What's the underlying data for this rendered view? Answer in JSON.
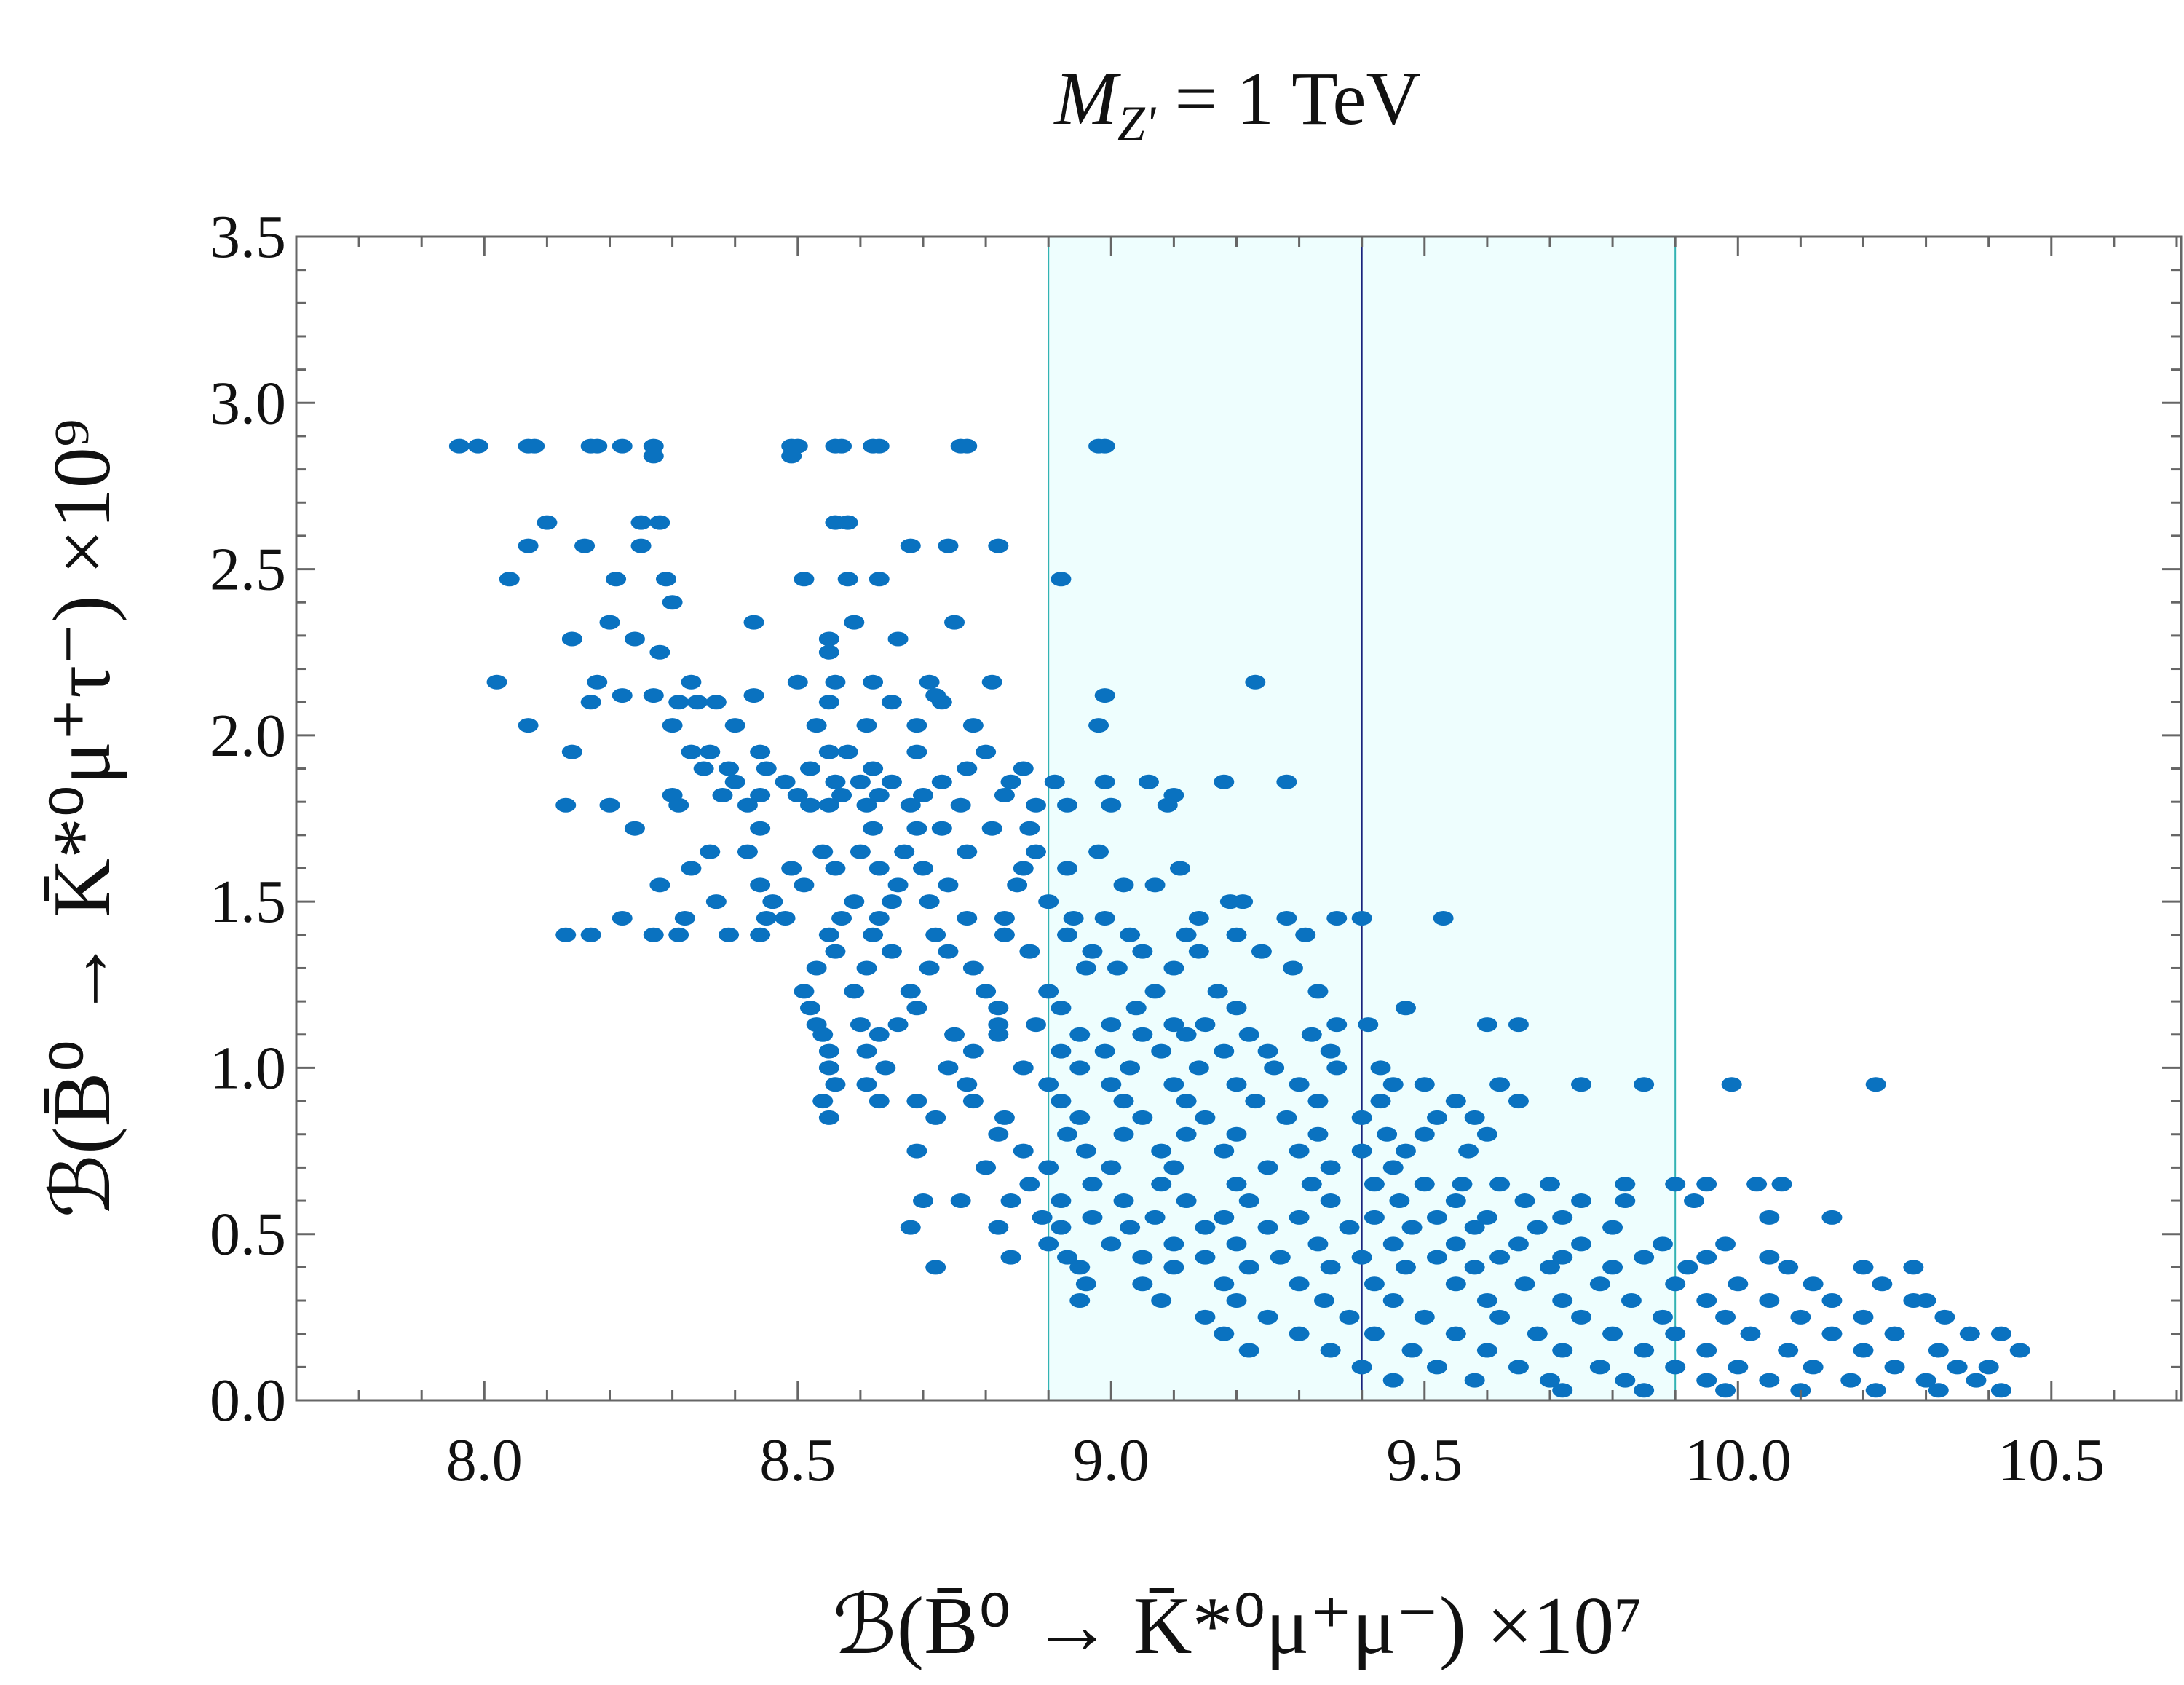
{
  "chart_data": {
    "type": "scatter",
    "title": {
      "symbol": "M",
      "subscript": "Z'",
      "rest": " = 1 TeV"
    },
    "xlabel": "ℬ(B̄⁰ → K̄*⁰μ⁺μ⁻) ×10⁷",
    "ylabel": "ℬ(B̄⁰ → K̄*⁰μ⁺τ⁻) ×10⁹",
    "xlim": [
      7.7,
      10.707
    ],
    "ylim": [
      0.0,
      3.5
    ],
    "xticks": [
      "8.0",
      "8.5",
      "9.0",
      "9.5",
      "10.0",
      "10.5"
    ],
    "yticks": [
      "0.0",
      "0.5",
      "1.0",
      "1.5",
      "2.0",
      "2.5",
      "3.0",
      "3.5"
    ],
    "grid": false,
    "colors": {
      "points": "#0a72c0",
      "band_fill": "#eefefe",
      "band_edge": "#33b3b3",
      "central_line": "#1a237e",
      "frame": "#666666"
    },
    "band": {
      "x_min": 8.9,
      "x_max": 9.9,
      "central": 9.4
    },
    "points_by_row": [
      {
        "y": 2.87,
        "x": [
          7.96,
          7.99,
          8.07,
          8.08,
          8.17,
          8.18,
          8.22,
          8.27,
          8.49,
          8.5,
          8.56,
          8.57,
          8.62,
          8.63,
          8.76,
          8.77,
          8.98,
          8.99
        ]
      },
      {
        "y": 2.84,
        "x": [
          8.27,
          8.49
        ]
      },
      {
        "y": 2.64,
        "x": [
          8.1,
          8.25,
          8.28,
          8.56,
          8.58
        ]
      },
      {
        "y": 2.57,
        "x": [
          8.07,
          8.16,
          8.25,
          8.68,
          8.74,
          8.82
        ]
      },
      {
        "y": 2.47,
        "x": [
          8.04,
          8.21,
          8.29,
          8.51,
          8.58,
          8.63,
          8.92
        ]
      },
      {
        "y": 2.4,
        "x": [
          8.3
        ]
      },
      {
        "y": 2.34,
        "x": [
          8.2,
          8.43,
          8.59,
          8.75
        ]
      },
      {
        "y": 2.29,
        "x": [
          8.14,
          8.24,
          8.55,
          8.66
        ]
      },
      {
        "y": 2.25,
        "x": [
          8.28,
          8.55
        ]
      },
      {
        "y": 2.16,
        "x": [
          8.02,
          8.18,
          8.33,
          8.5,
          8.56,
          8.62,
          8.71,
          8.81,
          9.23
        ]
      },
      {
        "y": 2.12,
        "x": [
          8.22,
          8.27,
          8.43,
          8.72,
          8.99
        ]
      },
      {
        "y": 2.1,
        "x": [
          8.17,
          8.31,
          8.34,
          8.37,
          8.55,
          8.65,
          8.73
        ]
      },
      {
        "y": 2.03,
        "x": [
          8.07,
          8.3,
          8.4,
          8.53,
          8.61,
          8.69,
          8.78,
          8.98
        ]
      },
      {
        "y": 1.95,
        "x": [
          8.14,
          8.33,
          8.36,
          8.44,
          8.55,
          8.58,
          8.69,
          8.8
        ]
      },
      {
        "y": 1.9,
        "x": [
          8.35,
          8.39,
          8.45,
          8.52,
          8.62,
          8.77,
          8.86
        ]
      },
      {
        "y": 1.86,
        "x": [
          8.4,
          8.48,
          8.56,
          8.6,
          8.65,
          8.73,
          8.84,
          8.91,
          8.99,
          9.06,
          9.18,
          9.28
        ]
      },
      {
        "y": 1.82,
        "x": [
          8.3,
          8.38,
          8.44,
          8.5,
          8.57,
          8.63,
          8.7,
          8.83,
          9.1
        ]
      },
      {
        "y": 1.79,
        "x": [
          8.13,
          8.2,
          8.31,
          8.42,
          8.52,
          8.55,
          8.61,
          8.68,
          8.76,
          8.88,
          8.93,
          9.0,
          9.09
        ]
      },
      {
        "y": 1.72,
        "x": [
          8.24,
          8.44,
          8.62,
          8.69,
          8.73,
          8.81,
          8.87
        ]
      },
      {
        "y": 1.65,
        "x": [
          8.36,
          8.42,
          8.54,
          8.6,
          8.67,
          8.77,
          8.88,
          8.98
        ]
      },
      {
        "y": 1.6,
        "x": [
          8.33,
          8.49,
          8.56,
          8.63,
          8.7,
          8.86,
          8.93,
          9.11
        ]
      },
      {
        "y": 1.55,
        "x": [
          8.28,
          8.44,
          8.51,
          8.66,
          8.74,
          8.85,
          9.02,
          9.07
        ]
      },
      {
        "y": 1.5,
        "x": [
          8.37,
          8.46,
          8.59,
          8.65,
          8.71,
          8.9,
          9.19,
          9.21
        ]
      },
      {
        "y": 1.45,
        "x": [
          8.22,
          8.32,
          8.45,
          8.48,
          8.57,
          8.63,
          8.77,
          8.83,
          8.94,
          8.99,
          9.14,
          9.28,
          9.36,
          9.4,
          9.53
        ]
      },
      {
        "y": 1.4,
        "x": [
          8.13,
          8.17,
          8.27,
          8.31,
          8.39,
          8.44,
          8.55,
          8.62,
          8.72,
          8.83,
          8.93,
          9.03,
          9.12,
          9.2,
          9.31
        ]
      },
      {
        "y": 1.35,
        "x": [
          8.56,
          8.65,
          8.74,
          8.87,
          8.97,
          9.05,
          9.14,
          9.24
        ]
      },
      {
        "y": 1.3,
        "x": [
          8.53,
          8.61,
          8.71,
          8.78,
          8.96,
          9.01,
          9.1,
          9.29
        ]
      },
      {
        "y": 1.23,
        "x": [
          8.51,
          8.59,
          8.68,
          8.8,
          8.9,
          9.07,
          9.17,
          9.33
        ]
      },
      {
        "y": 1.18,
        "x": [
          8.52,
          8.69,
          8.82,
          8.92,
          9.04,
          9.2,
          9.47
        ]
      },
      {
        "y": 1.13,
        "x": [
          8.53,
          8.6,
          8.66,
          8.82,
          8.88,
          9.0,
          9.1,
          9.15,
          9.36,
          9.41,
          9.6,
          9.65
        ]
      },
      {
        "y": 1.1,
        "x": [
          8.54,
          8.63,
          8.75,
          8.82,
          8.95,
          9.05,
          9.12,
          9.22,
          9.32
        ]
      },
      {
        "y": 1.05,
        "x": [
          8.55,
          8.61,
          8.78,
          8.92,
          8.99,
          9.08,
          9.18,
          9.25,
          9.35
        ]
      },
      {
        "y": 1.0,
        "x": [
          8.55,
          8.64,
          8.74,
          8.86,
          8.95,
          9.03,
          9.14,
          9.26,
          9.36,
          9.43
        ]
      },
      {
        "y": 0.95,
        "x": [
          8.56,
          8.61,
          8.77,
          8.9,
          9.0,
          9.1,
          9.2,
          9.3,
          9.45,
          9.5,
          9.62,
          9.75,
          9.85,
          9.99,
          10.22
        ]
      },
      {
        "y": 0.9,
        "x": [
          8.54,
          8.63,
          8.69,
          8.78,
          8.92,
          9.02,
          9.12,
          9.23,
          9.33,
          9.43,
          9.55,
          9.65
        ]
      },
      {
        "y": 0.85,
        "x": [
          8.55,
          8.72,
          8.83,
          8.95,
          9.05,
          9.15,
          9.28,
          9.4,
          9.52,
          9.58
        ]
      },
      {
        "y": 0.8,
        "x": [
          8.82,
          8.93,
          9.02,
          9.12,
          9.2,
          9.33,
          9.44,
          9.5,
          9.6
        ]
      },
      {
        "y": 0.75,
        "x": [
          8.69,
          8.86,
          8.96,
          9.08,
          9.18,
          9.3,
          9.4,
          9.47,
          9.57
        ]
      },
      {
        "y": 0.7,
        "x": [
          8.8,
          8.9,
          9.0,
          9.1,
          9.25,
          9.35,
          9.45
        ]
      },
      {
        "y": 0.65,
        "x": [
          8.87,
          8.97,
          9.08,
          9.2,
          9.32,
          9.42,
          9.5,
          9.56,
          9.62,
          9.7,
          9.82,
          9.9,
          9.95,
          10.03,
          10.07
        ]
      },
      {
        "y": 0.6,
        "x": [
          8.7,
          8.76,
          8.84,
          8.92,
          9.02,
          9.12,
          9.22,
          9.35,
          9.46,
          9.55,
          9.66,
          9.75,
          9.82,
          9.93
        ]
      },
      {
        "y": 0.55,
        "x": [
          8.89,
          8.97,
          9.07,
          9.18,
          9.3,
          9.42,
          9.52,
          9.6,
          9.72,
          10.05,
          10.15
        ]
      },
      {
        "y": 0.52,
        "x": [
          8.68,
          8.82,
          8.92,
          9.03,
          9.15,
          9.25,
          9.38,
          9.48,
          9.58,
          9.68,
          9.8
        ]
      },
      {
        "y": 0.47,
        "x": [
          8.9,
          9.0,
          9.1,
          9.2,
          9.33,
          9.45,
          9.55,
          9.65,
          9.75,
          9.88,
          9.98
        ]
      },
      {
        "y": 0.43,
        "x": [
          8.84,
          8.93,
          9.05,
          9.15,
          9.27,
          9.4,
          9.52,
          9.62,
          9.72,
          9.85,
          9.95,
          10.05
        ]
      },
      {
        "y": 0.4,
        "x": [
          8.72,
          8.95,
          9.1,
          9.22,
          9.35,
          9.47,
          9.58,
          9.7,
          9.8,
          9.92,
          10.08,
          10.2,
          10.28
        ]
      },
      {
        "y": 0.35,
        "x": [
          8.96,
          9.05,
          9.18,
          9.3,
          9.42,
          9.55,
          9.66,
          9.78,
          9.9,
          10.0,
          10.12,
          10.23
        ]
      },
      {
        "y": 0.3,
        "x": [
          8.95,
          9.08,
          9.2,
          9.34,
          9.45,
          9.6,
          9.72,
          9.83,
          9.95,
          10.05,
          10.15,
          10.28,
          10.3
        ]
      },
      {
        "y": 0.25,
        "x": [
          9.15,
          9.25,
          9.38,
          9.5,
          9.62,
          9.75,
          9.88,
          9.98,
          10.1,
          10.2,
          10.33
        ]
      },
      {
        "y": 0.2,
        "x": [
          9.18,
          9.3,
          9.42,
          9.55,
          9.68,
          9.8,
          9.9,
          10.02,
          10.15,
          10.25,
          10.37,
          10.42
        ]
      },
      {
        "y": 0.15,
        "x": [
          9.22,
          9.35,
          9.48,
          9.6,
          9.72,
          9.85,
          9.95,
          10.08,
          10.2,
          10.32,
          10.45
        ]
      },
      {
        "y": 0.1,
        "x": [
          9.4,
          9.52,
          9.65,
          9.78,
          9.9,
          10.0,
          10.12,
          10.25,
          10.35,
          10.4
        ]
      },
      {
        "y": 0.06,
        "x": [
          9.45,
          9.58,
          9.7,
          9.82,
          9.95,
          10.05,
          10.18,
          10.3,
          10.38
        ]
      },
      {
        "y": 0.03,
        "x": [
          9.72,
          9.85,
          9.98,
          10.1,
          10.22,
          10.32,
          10.42
        ]
      }
    ]
  }
}
